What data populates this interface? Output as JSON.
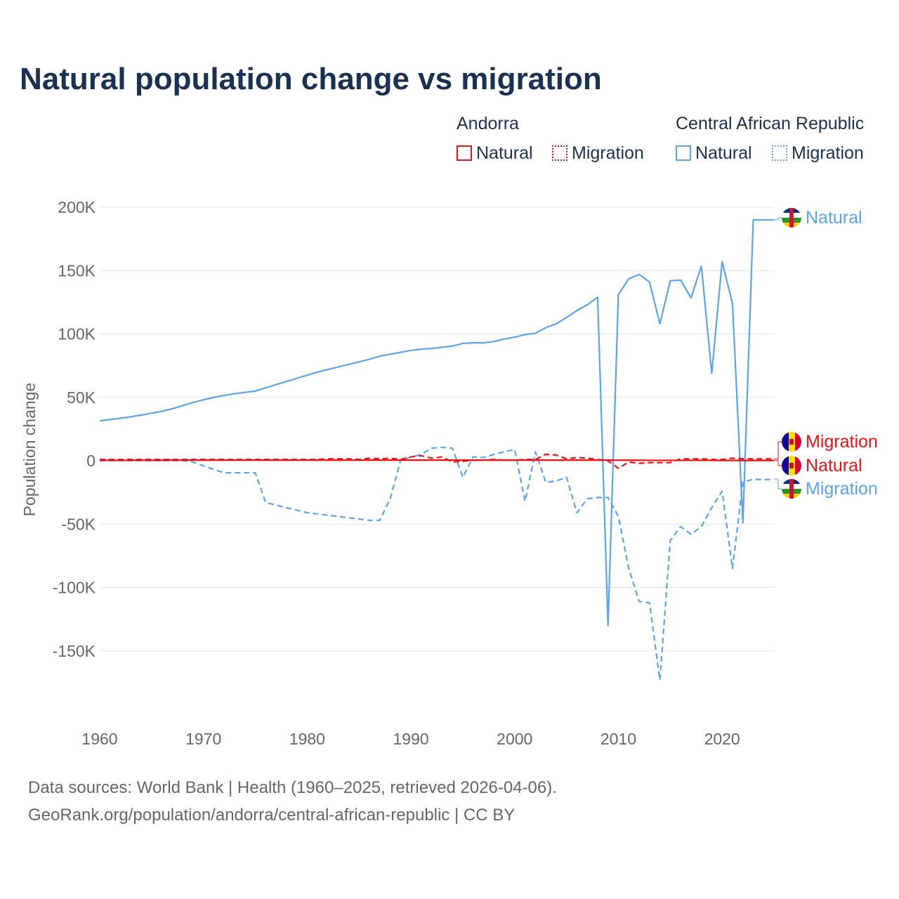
{
  "title": "Natural population change vs migration",
  "legend": {
    "groups": [
      {
        "name": "Andorra",
        "natural": "Natural",
        "migration": "Migration",
        "color": "#ee1111"
      },
      {
        "name": "Central African Republic",
        "natural": "Natural",
        "migration": "Migration",
        "color": "#5ba4ea"
      }
    ]
  },
  "footer": {
    "line1": "Data sources: World Bank | Health (1960–2025, retrieved 2026-04-06).",
    "line2": "GeoRank.org/population/andorra/central-african-republic | CC BY"
  },
  "chart_data": {
    "type": "line",
    "title": "Natural population change vs migration",
    "xlabel": "",
    "ylabel": "Population change",
    "xlim": [
      1960,
      2025
    ],
    "ylim": [
      -190000,
      200000
    ],
    "xticks": [
      "1960",
      "1970",
      "1980",
      "1990",
      "2000",
      "2010",
      "2020"
    ],
    "yticks": [
      {
        "v": 200000,
        "l": "200K"
      },
      {
        "v": 150000,
        "l": "150K"
      },
      {
        "v": 100000,
        "l": "100K"
      },
      {
        "v": 50000,
        "l": "50K"
      },
      {
        "v": 0,
        "l": "0"
      },
      {
        "v": -50000,
        "l": "-50K"
      },
      {
        "v": -100000,
        "l": "-100K"
      },
      {
        "v": -150000,
        "l": "-150K"
      }
    ],
    "x_start": 1960,
    "series": [
      {
        "name": "Central African Republic Natural",
        "label": "Natural",
        "color": "#5ba4ea",
        "dash": false,
        "values_k": [
          31.5,
          32.5,
          33.5,
          34.7,
          36,
          37.5,
          39,
          41,
          43.5,
          46,
          48,
          50,
          51.5,
          52.8,
          54,
          55,
          57.5,
          60,
          62.5,
          65,
          67.5,
          70,
          72,
          74,
          76,
          78,
          80,
          82.5,
          84,
          85.5,
          87,
          88,
          88.5,
          89.5,
          90.5,
          92.5,
          93,
          93,
          94,
          96,
          97.5,
          99.5,
          100.5,
          105,
          108,
          113,
          118.5,
          123,
          129,
          -130,
          131,
          143.5,
          147,
          141,
          108,
          142,
          142.5,
          128.5,
          153.5,
          69,
          157,
          124,
          -49,
          190,
          190,
          190
        ]
      },
      {
        "name": "Central African Republic Migration",
        "label": "Migration",
        "color": "#5ba4ea",
        "dash": true,
        "values_k": [
          0,
          0,
          0,
          0,
          0,
          0,
          0,
          0,
          0,
          -1,
          -4,
          -7,
          -9.5,
          -9.5,
          -9.5,
          -9.5,
          -33,
          -35,
          -37,
          -39,
          -41,
          -42,
          -43,
          -44,
          -45,
          -46,
          -47,
          -47,
          -30,
          0,
          3,
          5,
          10,
          10.5,
          10,
          -13,
          3,
          2.5,
          5,
          7,
          9,
          -32,
          7,
          -17,
          -16,
          -13,
          -41,
          -30,
          -29,
          -29,
          -44,
          -85,
          -111,
          -112,
          -173,
          -63,
          -52,
          -58,
          -52,
          -37,
          -24,
          -85,
          -17,
          -14.5,
          -15,
          -14.5
        ]
      },
      {
        "name": "Andorra Natural",
        "label": "Natural",
        "color": "#ee1111",
        "dash": false,
        "values_k": [
          0.3,
          0.3,
          0.3,
          0.4,
          0.4,
          0.4,
          0.4,
          0.5,
          0.5,
          0.5,
          0.5,
          0.5,
          0.5,
          0.5,
          0.5,
          0.5,
          0.5,
          0.5,
          0.5,
          0.5,
          0.5,
          0.5,
          0.5,
          0.5,
          0.5,
          0.5,
          0.5,
          0.5,
          0.5,
          0.5,
          0.5,
          0.5,
          0.5,
          0.5,
          0.5,
          0.5,
          0.5,
          0.5,
          0.5,
          0.5,
          0.5,
          0.5,
          0.5,
          0.5,
          0.5,
          0.5,
          0.5,
          0.5,
          0.5,
          0.5,
          0.4,
          0.4,
          0.4,
          0.3,
          0.3,
          0.3,
          0.3,
          0.3,
          0.3,
          0.3,
          0.2,
          0.2,
          0.2,
          0.2,
          0.2,
          0.2
        ]
      },
      {
        "name": "Andorra Migration",
        "label": "Migration",
        "color": "#ee1111",
        "dash": true,
        "values_k": [
          1,
          1,
          1,
          1,
          1,
          1,
          1,
          1,
          1,
          1,
          1,
          1,
          1,
          1,
          1,
          1,
          1,
          1,
          1,
          1,
          1,
          1,
          1.5,
          1.5,
          1.5,
          1,
          2,
          1.5,
          2,
          1,
          3,
          4,
          2,
          3,
          -1,
          -0.5,
          0.5,
          0.5,
          1,
          0.5,
          0.5,
          1,
          1,
          5,
          4.5,
          1.5,
          2.5,
          2,
          1,
          0,
          -6,
          -1,
          -2,
          -1.5,
          -1.5,
          -1.5,
          1.5,
          1.5,
          1.5,
          1,
          1,
          2,
          1.5,
          1.5,
          1.5,
          1.5
        ]
      }
    ]
  }
}
